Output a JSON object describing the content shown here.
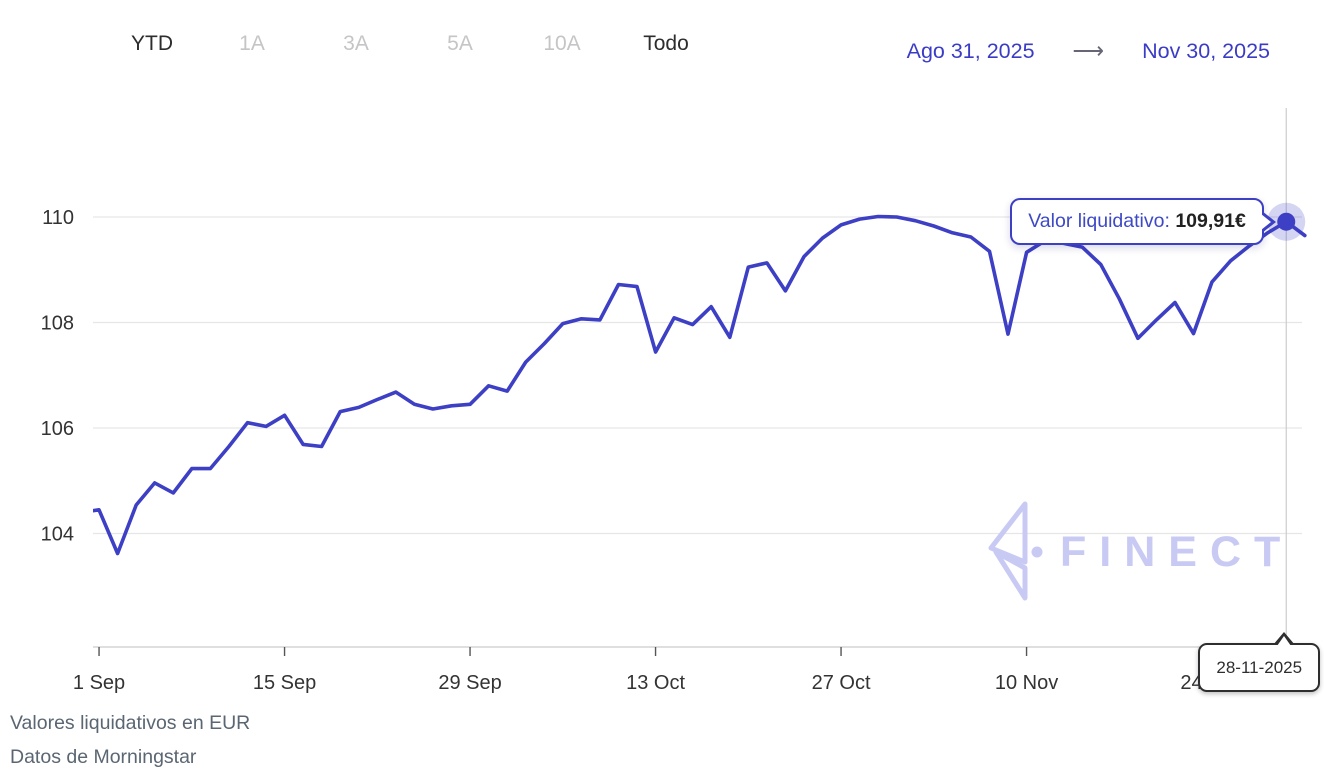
{
  "toolbar": {
    "periods": [
      {
        "label": "YTD",
        "active": true
      },
      {
        "label": "1A",
        "active": false
      },
      {
        "label": "3A",
        "active": false
      },
      {
        "label": "5A",
        "active": false
      },
      {
        "label": "10A",
        "active": false
      },
      {
        "label": "Todo",
        "active": true
      }
    ],
    "range": {
      "start": "Ago 31, 2025",
      "arrow": "⟶",
      "end": "Nov 30, 2025"
    }
  },
  "tooltip": {
    "label": "Valor liquidativo:",
    "value": "109,91€"
  },
  "date_tooltip": {
    "text": "28-11-2025"
  },
  "watermark": {
    "text": "FINECT"
  },
  "footer": {
    "line1": "Valores liquidativos en EUR",
    "line2": "Datos de Morningstar"
  },
  "colors": {
    "accent": "#3d3fc4",
    "halo": "rgba(61,63,196,0.22)",
    "grid": "#e6e6e6",
    "axis": "#cccccc",
    "tick": "#555555",
    "watermark": "#c8caf4",
    "crosshair": "#cccccc"
  },
  "chart_data": {
    "type": "line",
    "title": "",
    "xlabel": "",
    "ylabel": "",
    "currency": "EUR",
    "grid": true,
    "legend_position": "none",
    "ylim": [
      101.9,
      112.0
    ],
    "yticks": [
      104,
      106,
      108,
      110
    ],
    "xticks": [
      {
        "date": "2025-09-01",
        "label": "1 Sep"
      },
      {
        "date": "2025-09-15",
        "label": "15 Sep"
      },
      {
        "date": "2025-09-29",
        "label": "29 Sep"
      },
      {
        "date": "2025-10-13",
        "label": "13 Oct"
      },
      {
        "date": "2025-10-27",
        "label": "27 Oct"
      },
      {
        "date": "2025-11-10",
        "label": "10 Nov"
      },
      {
        "date": "2025-11-24",
        "label": "24 Nov"
      }
    ],
    "hover": {
      "date": "2025-11-28",
      "value": 109.91,
      "value_label": "109,91€",
      "date_label": "28-11-2025"
    },
    "series": [
      {
        "name": "Valor liquidativo",
        "color": "#3d3fc4",
        "points": [
          {
            "date": "2025-08-31",
            "value": 104.4
          },
          {
            "date": "2025-09-01",
            "value": 104.45
          },
          {
            "date": "2025-09-02",
            "value": 103.62
          },
          {
            "date": "2025-09-03",
            "value": 104.54
          },
          {
            "date": "2025-09-04",
            "value": 104.96
          },
          {
            "date": "2025-09-05",
            "value": 104.77
          },
          {
            "date": "2025-09-08",
            "value": 105.23
          },
          {
            "date": "2025-09-09",
            "value": 105.23
          },
          {
            "date": "2025-09-10",
            "value": 105.65
          },
          {
            "date": "2025-09-11",
            "value": 106.1
          },
          {
            "date": "2025-09-12",
            "value": 106.03
          },
          {
            "date": "2025-09-15",
            "value": 106.24
          },
          {
            "date": "2025-09-16",
            "value": 105.69
          },
          {
            "date": "2025-09-17",
            "value": 105.65
          },
          {
            "date": "2025-09-18",
            "value": 106.31
          },
          {
            "date": "2025-09-19",
            "value": 106.39
          },
          {
            "date": "2025-09-22",
            "value": 106.54
          },
          {
            "date": "2025-09-23",
            "value": 106.68
          },
          {
            "date": "2025-09-24",
            "value": 106.45
          },
          {
            "date": "2025-09-25",
            "value": 106.36
          },
          {
            "date": "2025-09-26",
            "value": 106.42
          },
          {
            "date": "2025-09-29",
            "value": 106.45
          },
          {
            "date": "2025-09-30",
            "value": 106.8
          },
          {
            "date": "2025-10-01",
            "value": 106.7
          },
          {
            "date": "2025-10-02",
            "value": 107.25
          },
          {
            "date": "2025-10-03",
            "value": 107.6
          },
          {
            "date": "2025-10-06",
            "value": 107.98
          },
          {
            "date": "2025-10-07",
            "value": 108.07
          },
          {
            "date": "2025-10-08",
            "value": 108.05
          },
          {
            "date": "2025-10-09",
            "value": 108.72
          },
          {
            "date": "2025-10-10",
            "value": 108.68
          },
          {
            "date": "2025-10-13",
            "value": 107.44
          },
          {
            "date": "2025-10-14",
            "value": 108.09
          },
          {
            "date": "2025-10-15",
            "value": 107.96
          },
          {
            "date": "2025-10-16",
            "value": 108.3
          },
          {
            "date": "2025-10-17",
            "value": 107.72
          },
          {
            "date": "2025-10-20",
            "value": 109.05
          },
          {
            "date": "2025-10-21",
            "value": 109.13
          },
          {
            "date": "2025-10-22",
            "value": 108.6
          },
          {
            "date": "2025-10-23",
            "value": 109.25
          },
          {
            "date": "2025-10-24",
            "value": 109.6
          },
          {
            "date": "2025-10-27",
            "value": 109.85
          },
          {
            "date": "2025-10-28",
            "value": 109.96
          },
          {
            "date": "2025-10-29",
            "value": 110.01
          },
          {
            "date": "2025-10-30",
            "value": 110.0
          },
          {
            "date": "2025-10-31",
            "value": 109.93
          },
          {
            "date": "2025-11-03",
            "value": 109.83
          },
          {
            "date": "2025-11-04",
            "value": 109.7
          },
          {
            "date": "2025-11-05",
            "value": 109.62
          },
          {
            "date": "2025-11-06",
            "value": 109.35
          },
          {
            "date": "2025-11-07",
            "value": 107.78
          },
          {
            "date": "2025-11-10",
            "value": 109.33
          },
          {
            "date": "2025-11-11",
            "value": 109.55
          },
          {
            "date": "2025-11-12",
            "value": 109.5
          },
          {
            "date": "2025-11-13",
            "value": 109.43
          },
          {
            "date": "2025-11-14",
            "value": 109.1
          },
          {
            "date": "2025-11-17",
            "value": 108.45
          },
          {
            "date": "2025-11-18",
            "value": 107.7
          },
          {
            "date": "2025-11-19",
            "value": 108.05
          },
          {
            "date": "2025-11-20",
            "value": 108.38
          },
          {
            "date": "2025-11-21",
            "value": 107.79
          },
          {
            "date": "2025-11-24",
            "value": 108.77
          },
          {
            "date": "2025-11-25",
            "value": 109.17
          },
          {
            "date": "2025-11-26",
            "value": 109.45
          },
          {
            "date": "2025-11-27",
            "value": 109.7
          },
          {
            "date": "2025-11-28",
            "value": 109.91
          },
          {
            "date": "2025-11-30",
            "value": 109.65
          }
        ]
      }
    ]
  }
}
